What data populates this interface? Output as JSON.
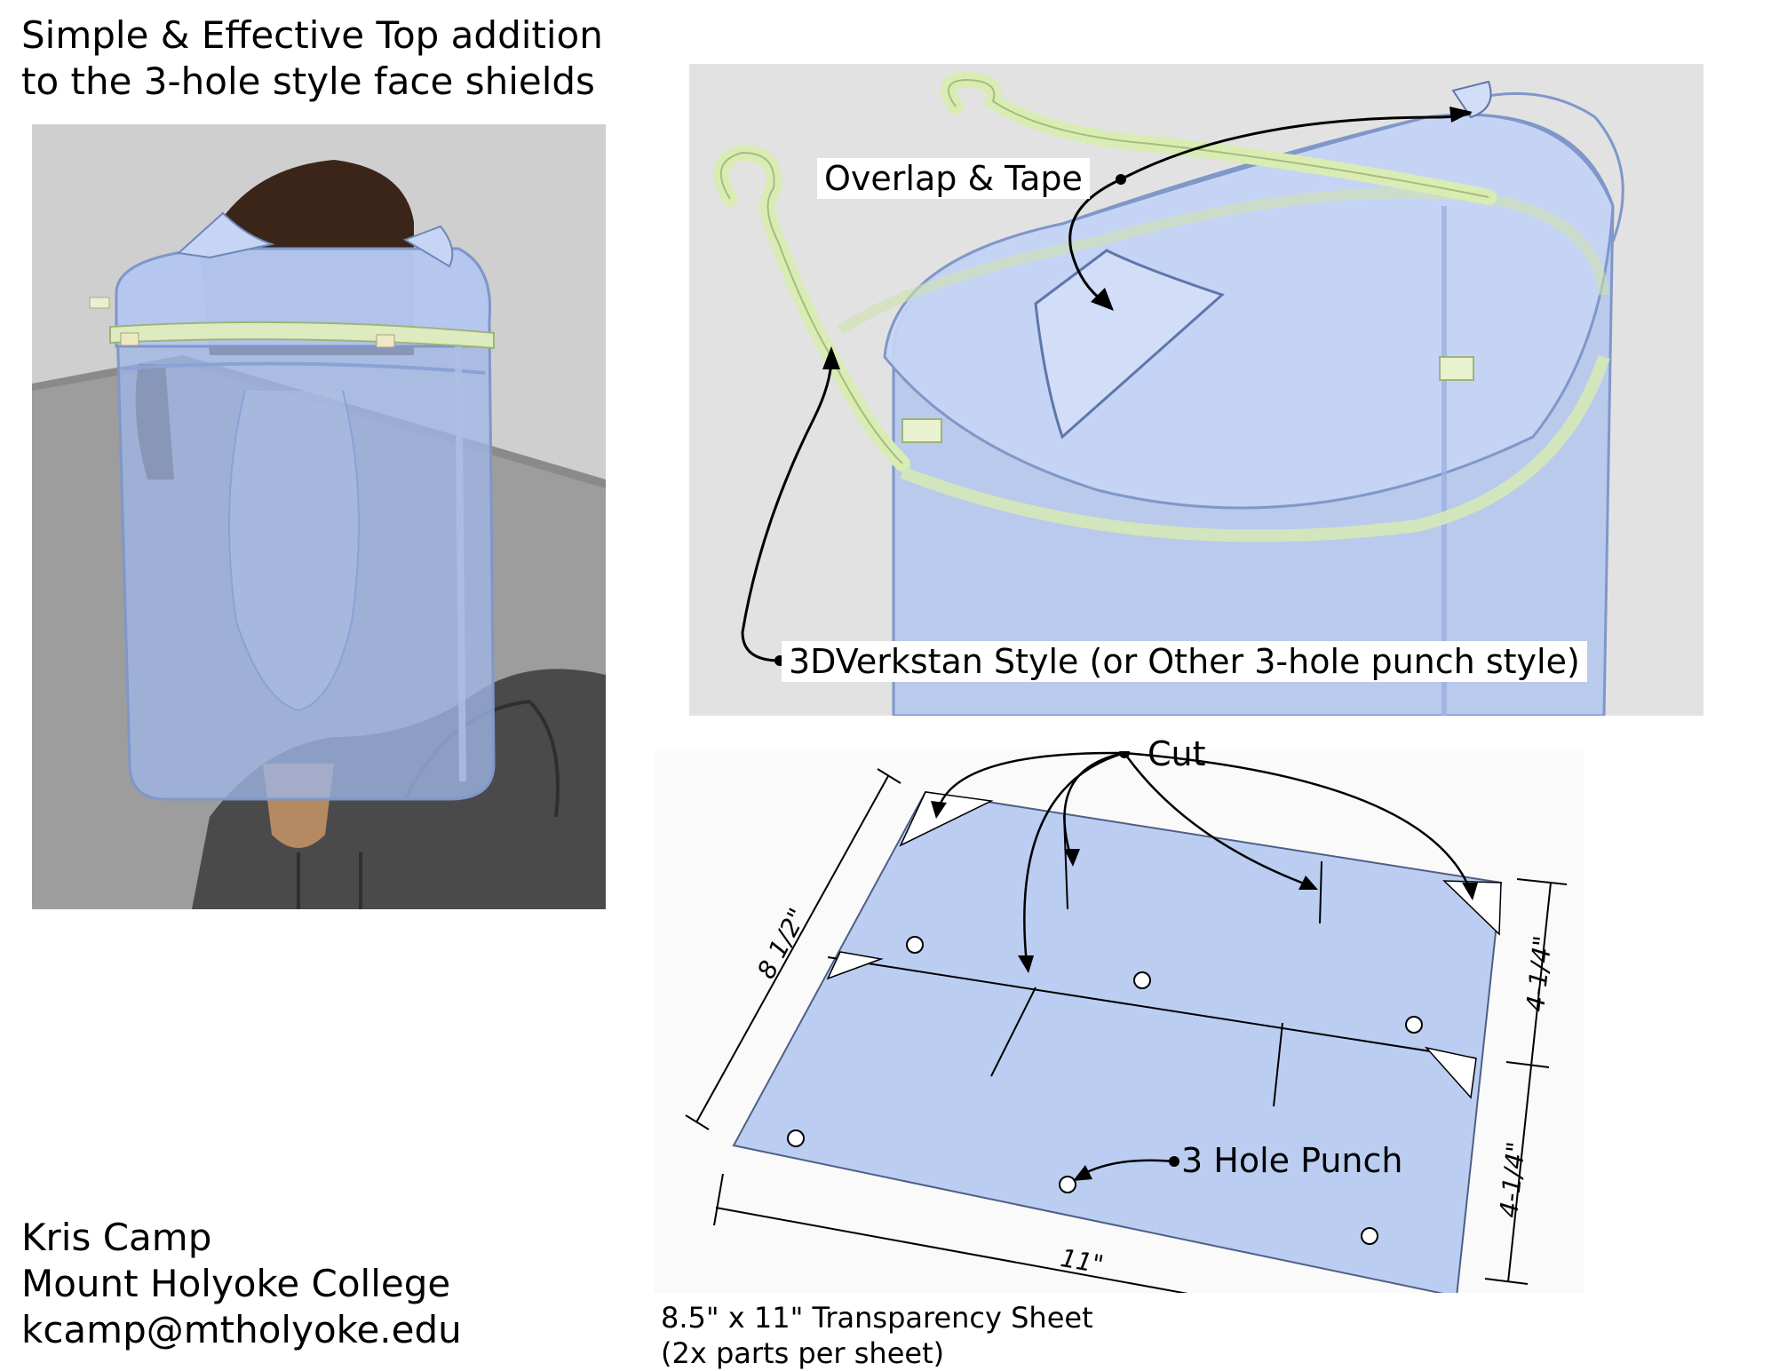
{
  "title": {
    "line1": "Simple & Effective Top addition",
    "line2": "to the 3-hole style face shields"
  },
  "author": {
    "name": "Kris Camp",
    "institution": "Mount Holyoke College",
    "email": "kcamp@mtholyoke.edu"
  },
  "callouts": {
    "overlap": "Overlap & Tape",
    "style": "3DVerkstan Style (or Other 3-hole punch style)",
    "cut": "Cut",
    "punch": "3 Hole Punch"
  },
  "dimensions": {
    "height": "8 1/2\"",
    "half_upper": "4-1/4\"",
    "half_lower": "4-1/4\"",
    "width": "11\""
  },
  "sheet": {
    "line1": "8.5\" x 11\" Transparency Sheet",
    "line2": "(2x parts per sheet)"
  },
  "colors": {
    "shield_blue": "#b8c9ef",
    "visor_green": "#d9ecb4",
    "render_bg": "#e2e2e2",
    "floor_gray": "#9c9c9c"
  }
}
